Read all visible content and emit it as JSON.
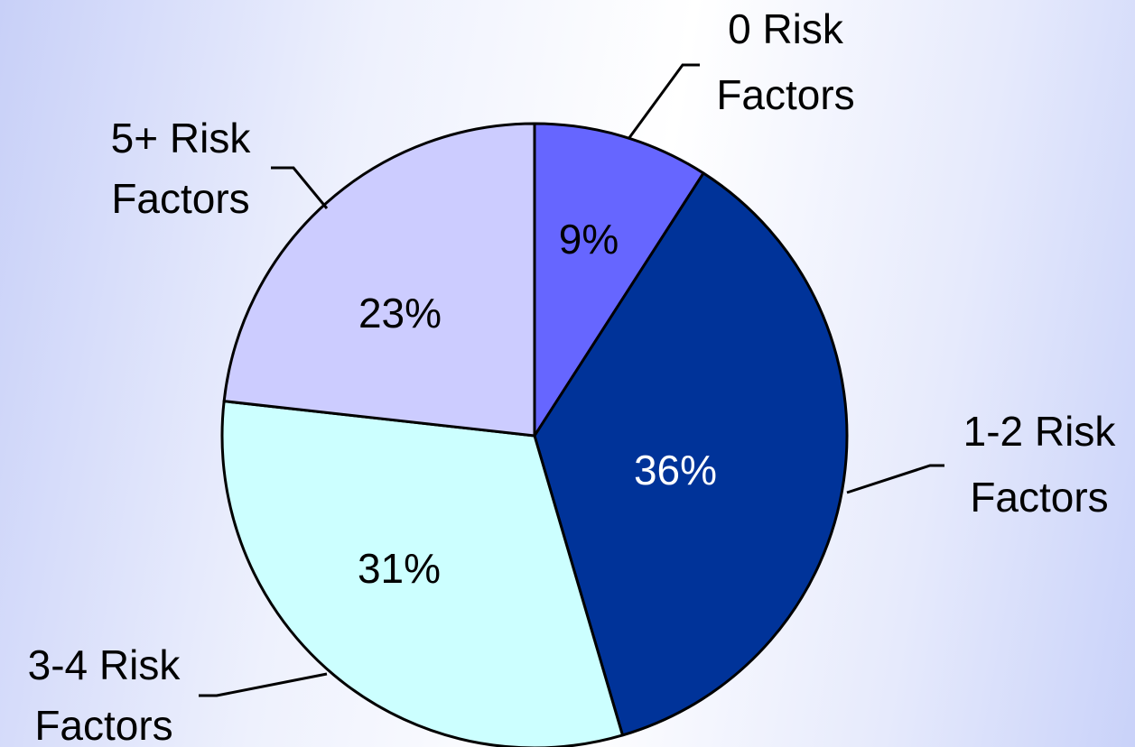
{
  "chart_data": {
    "type": "pie",
    "title": "",
    "slices": [
      {
        "label_line1": "0 Risk",
        "label_line2": "Factors",
        "value": 9,
        "value_label": "9%",
        "color": "#6666ff",
        "text_color": "#000000"
      },
      {
        "label_line1": "1-2 Risk",
        "label_line2": "Factors",
        "value": 36,
        "value_label": "36%",
        "color": "#003399",
        "text_color": "#ffffff"
      },
      {
        "label_line1": "3-4 Risk",
        "label_line2": "Factors",
        "value": 31,
        "value_label": "31%",
        "color": "#ccffff",
        "text_color": "#000000"
      },
      {
        "label_line1": "5+ Risk",
        "label_line2": "Factors",
        "value": 23,
        "value_label": "23%",
        "color": "#ccccff",
        "text_color": "#000000"
      }
    ],
    "start_angle": "12 o'clock",
    "direction": "clockwise",
    "legend": "none"
  }
}
